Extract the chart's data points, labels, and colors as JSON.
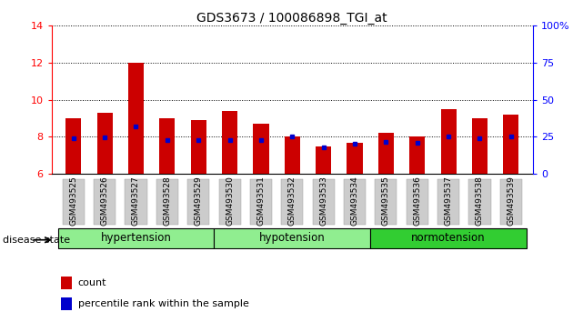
{
  "title": "GDS3673 / 100086898_TGI_at",
  "samples": [
    "GSM493525",
    "GSM493526",
    "GSM493527",
    "GSM493528",
    "GSM493529",
    "GSM493530",
    "GSM493531",
    "GSM493532",
    "GSM493533",
    "GSM493534",
    "GSM493535",
    "GSM493536",
    "GSM493537",
    "GSM493538",
    "GSM493539"
  ],
  "bar_tops": [
    9.0,
    9.3,
    12.0,
    9.0,
    8.9,
    9.4,
    8.7,
    8.0,
    7.5,
    7.7,
    8.2,
    8.0,
    9.5,
    9.0,
    9.2
  ],
  "blue_vals": [
    7.92,
    7.97,
    8.55,
    7.82,
    7.82,
    7.82,
    7.82,
    8.0,
    7.45,
    7.65,
    7.72,
    7.67,
    8.0,
    7.92,
    8.0
  ],
  "bar_baseline": 6.0,
  "ylim_left": [
    6,
    14
  ],
  "ylim_right": [
    0,
    100
  ],
  "yticks_left": [
    6,
    8,
    10,
    12,
    14
  ],
  "yticks_right": [
    0,
    25,
    50,
    75,
    100
  ],
  "right_tick_labels": [
    "0",
    "25",
    "50",
    "75",
    "100%"
  ],
  "bar_color": "#CC0000",
  "blue_color": "#0000CC",
  "disease_state_label": "disease state",
  "legend_count": "count",
  "legend_percentile": "percentile rank within the sample",
  "bar_width": 0.5,
  "tick_bg_color": "#CCCCCC",
  "group_boundaries": [
    {
      "start": 0,
      "end": 5,
      "label": "hypertension",
      "color": "#90EE90"
    },
    {
      "start": 5,
      "end": 10,
      "label": "hypotension",
      "color": "#90EE90"
    },
    {
      "start": 10,
      "end": 15,
      "label": "normotension",
      "color": "#32CD32"
    }
  ]
}
